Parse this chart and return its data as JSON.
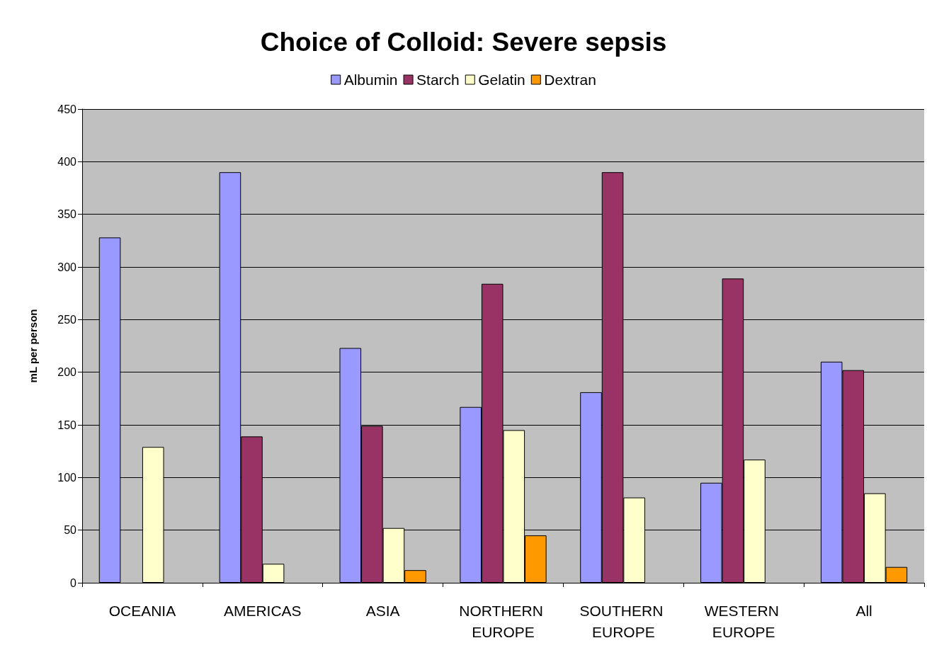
{
  "chart_data": {
    "type": "bar",
    "title": "Choice of Colloid: Severe sepsis",
    "ylabel": "mL per person",
    "categories": [
      "OCEANIA",
      "AMERICAS",
      "ASIA",
      "NORTHERN EUROPE",
      "SOUTHERN EUROPE",
      "WESTERN EUROPE",
      "All"
    ],
    "series": [
      {
        "name": "Albumin",
        "color": "#9999ff",
        "values": [
          328,
          390,
          223,
          167,
          181,
          95,
          210
        ]
      },
      {
        "name": "Starch",
        "color": "#993366",
        "values": [
          null,
          139,
          149,
          284,
          390,
          289,
          202
        ]
      },
      {
        "name": "Gelatin",
        "color": "#ffffcc",
        "values": [
          129,
          18,
          52,
          145,
          81,
          117,
          85
        ]
      },
      {
        "name": "Dextran",
        "color": "#ff9900",
        "values": [
          null,
          null,
          12,
          45,
          null,
          null,
          15
        ]
      }
    ],
    "ylim": [
      0,
      450
    ],
    "yticks": [
      0,
      50,
      100,
      150,
      200,
      250,
      300,
      350,
      400,
      450
    ],
    "grid": "y",
    "legend": "top"
  }
}
